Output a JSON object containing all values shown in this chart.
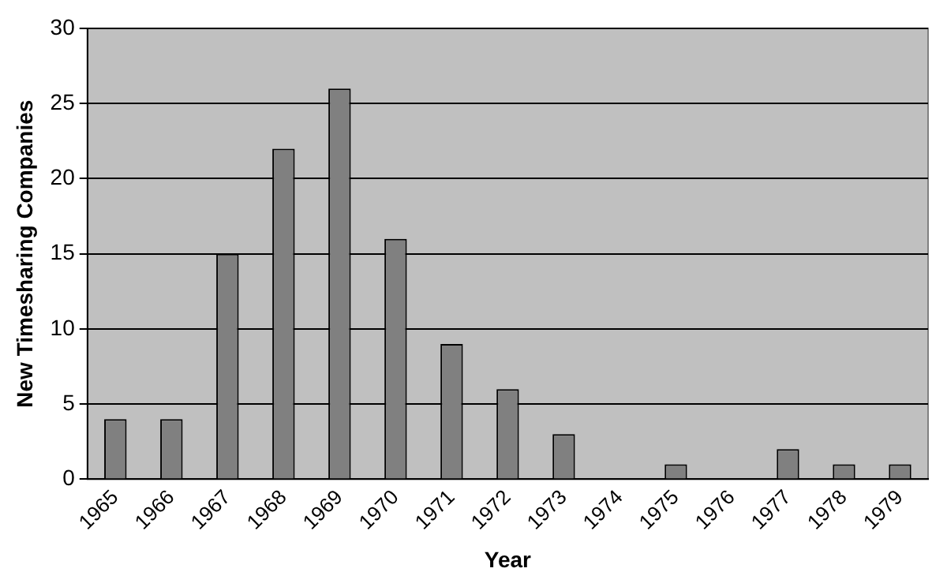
{
  "chart_data": {
    "type": "bar",
    "xlabel": "Year",
    "ylabel": "New Timesharing Companies",
    "categories": [
      "1965",
      "1966",
      "1967",
      "1968",
      "1969",
      "1970",
      "1971",
      "1972",
      "1973",
      "1974",
      "1975",
      "1976",
      "1977",
      "1978",
      "1979"
    ],
    "values": [
      4,
      4,
      15,
      22,
      26,
      16,
      9,
      6,
      3,
      0,
      1,
      0,
      2,
      1,
      1
    ],
    "color": "#808080",
    "ylim": [
      0,
      30
    ],
    "yticks": [
      0,
      5,
      10,
      15,
      20,
      25,
      30
    ],
    "grid": "y",
    "legend": false
  }
}
